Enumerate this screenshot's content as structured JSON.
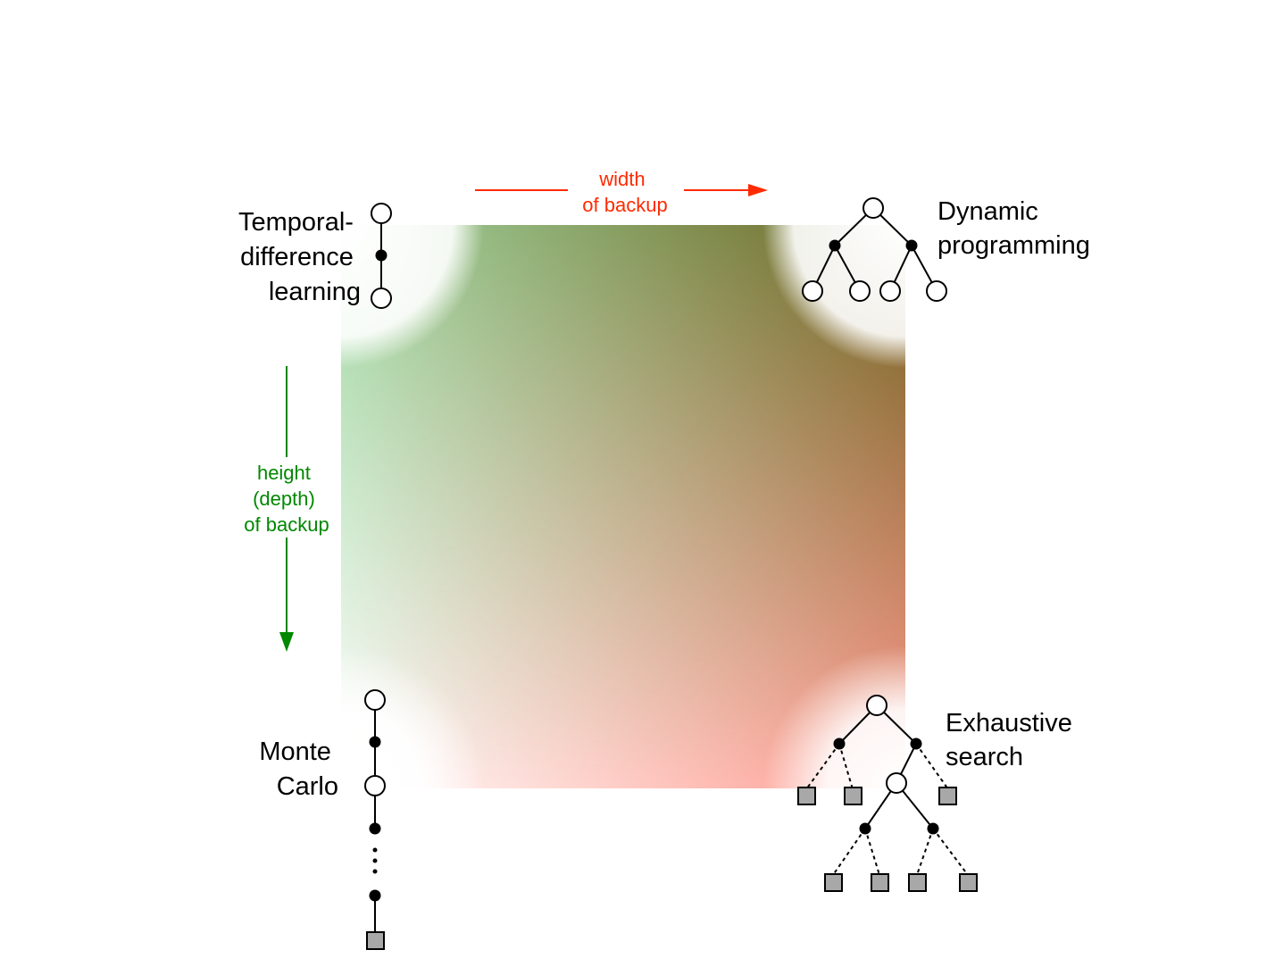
{
  "corners": {
    "td": {
      "lines": [
        "Temporal-",
        "difference",
        "learning"
      ]
    },
    "dp": {
      "lines": [
        "Dynamic",
        "programming"
      ]
    },
    "mc": {
      "lines": [
        "Monte",
        "Carlo"
      ]
    },
    "es": {
      "lines": [
        "Exhaustive",
        "search"
      ]
    }
  },
  "axes": {
    "width": {
      "lines": [
        "width",
        "of backup"
      ],
      "color": "#ff2a00"
    },
    "height": {
      "lines": [
        "height",
        "(depth)",
        "of backup"
      ],
      "color": "#008800"
    }
  },
  "colors": {
    "top_left": "#ffffff",
    "top_right": "#ff9a8e",
    "bottom_left": "#9fd6a0",
    "bottom_right": "#6f6420",
    "terminal_fill": "#a8a8a8"
  }
}
